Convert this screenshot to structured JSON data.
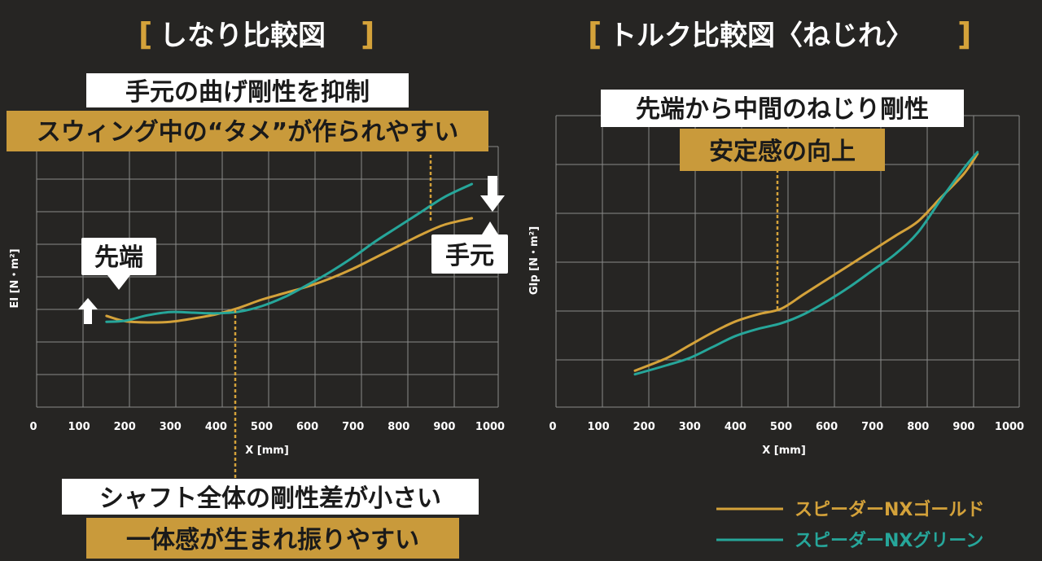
{
  "left_panel": {
    "title": "しなり比較図",
    "bracket_open": "[",
    "bracket_close": "]",
    "annotations": {
      "top_line1": "手元の曲げ剛性を抑制",
      "top_line2": "スウィング中の“タメ”が作られやすい",
      "bottom_line1": "シャフト全体の剛性差が小さい",
      "bottom_line2": "一体感が生まれ振りやすい",
      "tip_label": "先端",
      "butt_label": "手元"
    }
  },
  "right_panel": {
    "title": "トルク比較図〈ねじれ〉",
    "bracket_open": "[",
    "bracket_close": "]",
    "annotations": {
      "line1": "先端から中間のねじり剛性",
      "line2": "安定感の向上"
    }
  },
  "legend": {
    "gold_label": "スピーダーNXゴールド",
    "green_label": "スピーダーNXグリーン"
  },
  "colors": {
    "gold": "#d4a23a",
    "green": "#26a69a",
    "background": "#262523",
    "grid": "#8a8a8a"
  },
  "chart_data": [
    {
      "type": "line",
      "xlabel": "X [mm]",
      "ylabel": "EI [N・m²]",
      "xlim": [
        0,
        1000
      ],
      "x_ticks": [
        "0",
        "100",
        "200",
        "300",
        "400",
        "500",
        "600",
        "700",
        "800",
        "900",
        "1000"
      ],
      "grid": true,
      "series": [
        {
          "name": "スピーダーNXゴールド",
          "color": "#d4a23a",
          "x": [
            160,
            200,
            250,
            300,
            350,
            400,
            450,
            500,
            550,
            600,
            650,
            700,
            750,
            800,
            850,
            900,
            960
          ],
          "y": [
            3.8,
            3.64,
            3.6,
            3.62,
            3.72,
            3.85,
            4.05,
            4.3,
            4.5,
            4.7,
            4.95,
            5.25,
            5.6,
            5.95,
            6.3,
            6.6,
            6.8
          ]
        },
        {
          "name": "スピーダーNXグリーン",
          "color": "#26a69a",
          "x": [
            160,
            200,
            250,
            300,
            350,
            400,
            450,
            500,
            550,
            600,
            650,
            700,
            750,
            800,
            850,
            900,
            960
          ],
          "y": [
            3.62,
            3.65,
            3.82,
            3.92,
            3.9,
            3.88,
            3.93,
            4.1,
            4.38,
            4.75,
            5.15,
            5.6,
            6.1,
            6.55,
            7.0,
            7.45,
            7.85
          ]
        }
      ]
    },
    {
      "type": "line",
      "xlabel": "X [mm]",
      "ylabel": "GIp [N・m²]",
      "xlim": [
        0,
        1000
      ],
      "x_ticks": [
        "0",
        "100",
        "200",
        "300",
        "400",
        "500",
        "600",
        "700",
        "800",
        "900",
        "1000"
      ],
      "grid": true,
      "series": [
        {
          "name": "スピーダーNXゴールド",
          "color": "#d4a23a",
          "x": [
            180,
            250,
            300,
            350,
            400,
            450,
            500,
            550,
            600,
            650,
            700,
            750,
            800,
            850,
            900,
            930
          ],
          "y": [
            1.0,
            1.35,
            1.7,
            2.05,
            2.35,
            2.55,
            2.7,
            3.1,
            3.5,
            3.9,
            4.3,
            4.7,
            5.1,
            5.75,
            6.4,
            6.95
          ]
        },
        {
          "name": "スピーダーNXグリーン",
          "color": "#26a69a",
          "x": [
            180,
            250,
            300,
            350,
            400,
            450,
            500,
            550,
            600,
            650,
            700,
            750,
            800,
            850,
            900,
            930
          ],
          "y": [
            0.9,
            1.15,
            1.35,
            1.65,
            1.95,
            2.15,
            2.3,
            2.55,
            2.9,
            3.3,
            3.75,
            4.2,
            4.8,
            5.7,
            6.55,
            7.0
          ]
        }
      ]
    }
  ]
}
